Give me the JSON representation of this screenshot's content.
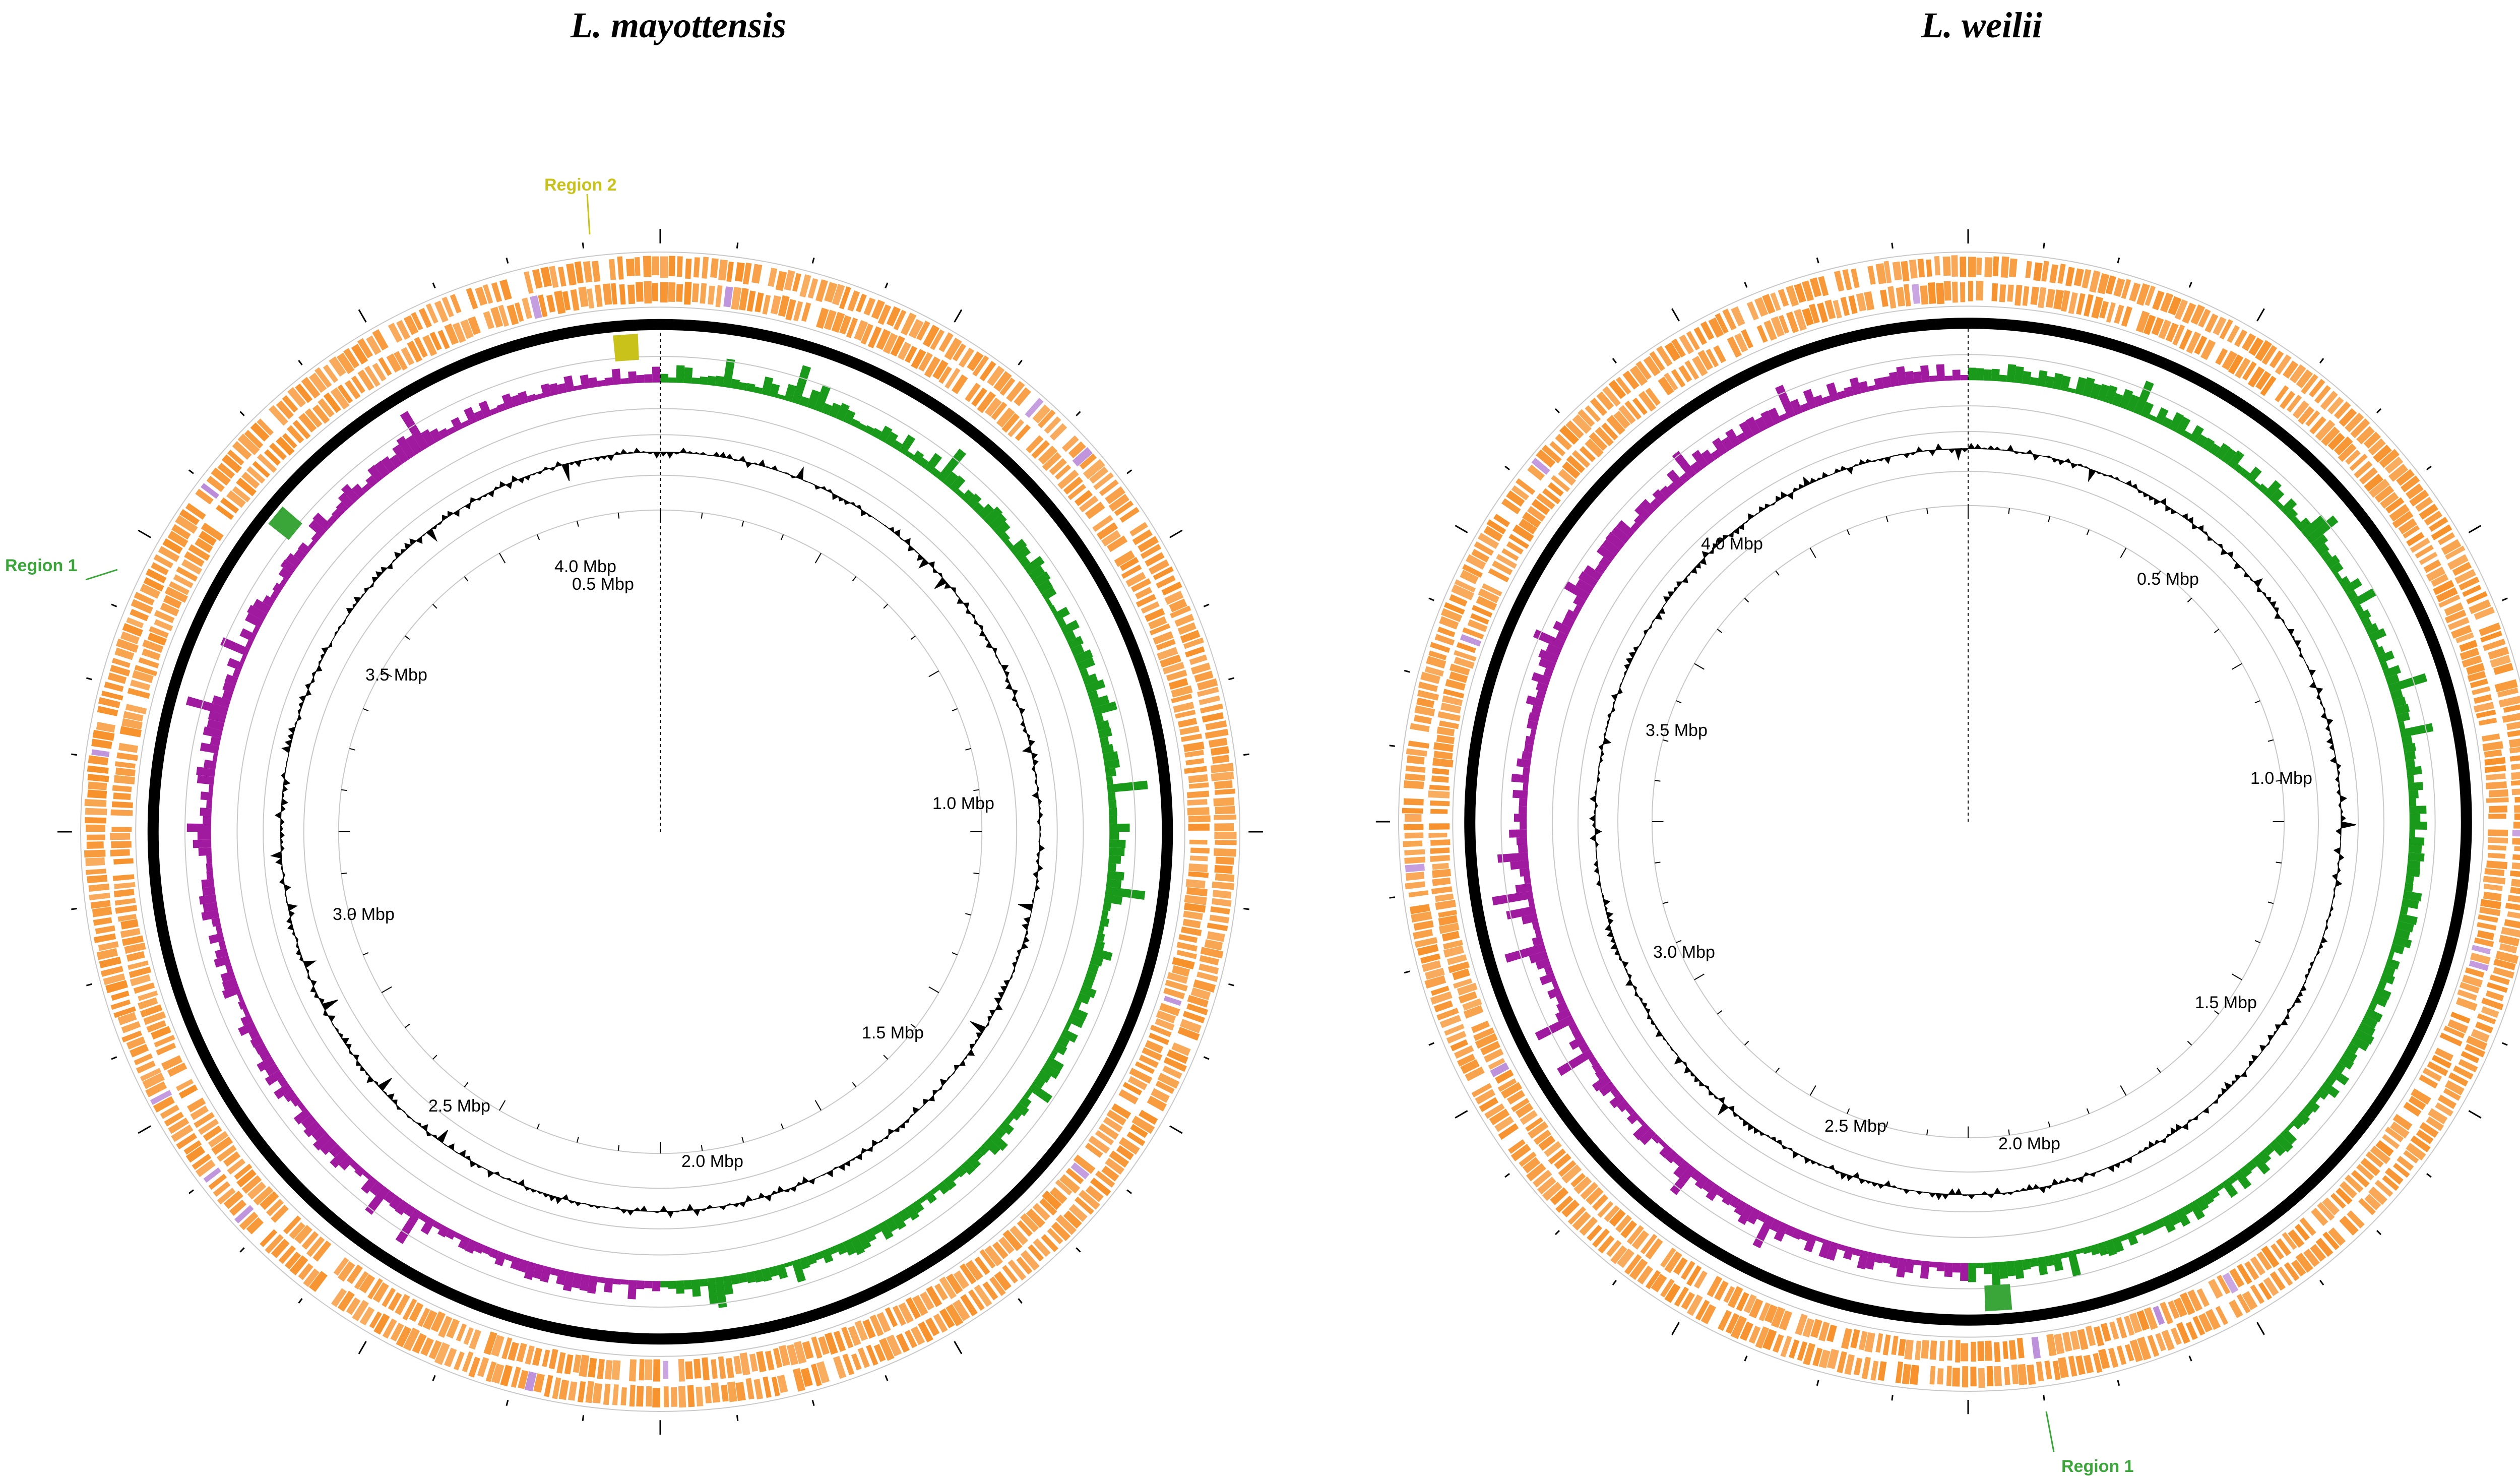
{
  "genomes": [
    {
      "title": "L. mayottensis",
      "tick_labels": [
        "0.5 Mbp",
        "1.0 Mbp",
        "1.5 Mbp",
        "2.0 Mbp",
        "2.5 Mbp",
        "3.0 Mbp",
        "3.5 Mbp",
        "4.0 Mbp"
      ],
      "regions": [
        {
          "label": "Region 1",
          "color": "#3aa63a"
        },
        {
          "label": "Region 2",
          "color": "#c8c21a"
        }
      ]
    },
    {
      "title": "L. weilii",
      "tick_labels": [
        "0.5 Mbp",
        "1.0 Mbp",
        "1.5 Mbp",
        "2.0 Mbp",
        "2.5 Mbp",
        "3.0 Mbp",
        "3.5 Mbp",
        "4.0 Mbp"
      ],
      "regions": [
        {
          "label": "Region 1",
          "color": "#3aa63a"
        }
      ]
    }
  ],
  "colors": {
    "cds": "#f7912a",
    "gc_skew_positive": "#1a9a1a",
    "gc_skew_negative": "#a01aa0",
    "gc_content": "#000000",
    "backbone": "#000000"
  }
}
